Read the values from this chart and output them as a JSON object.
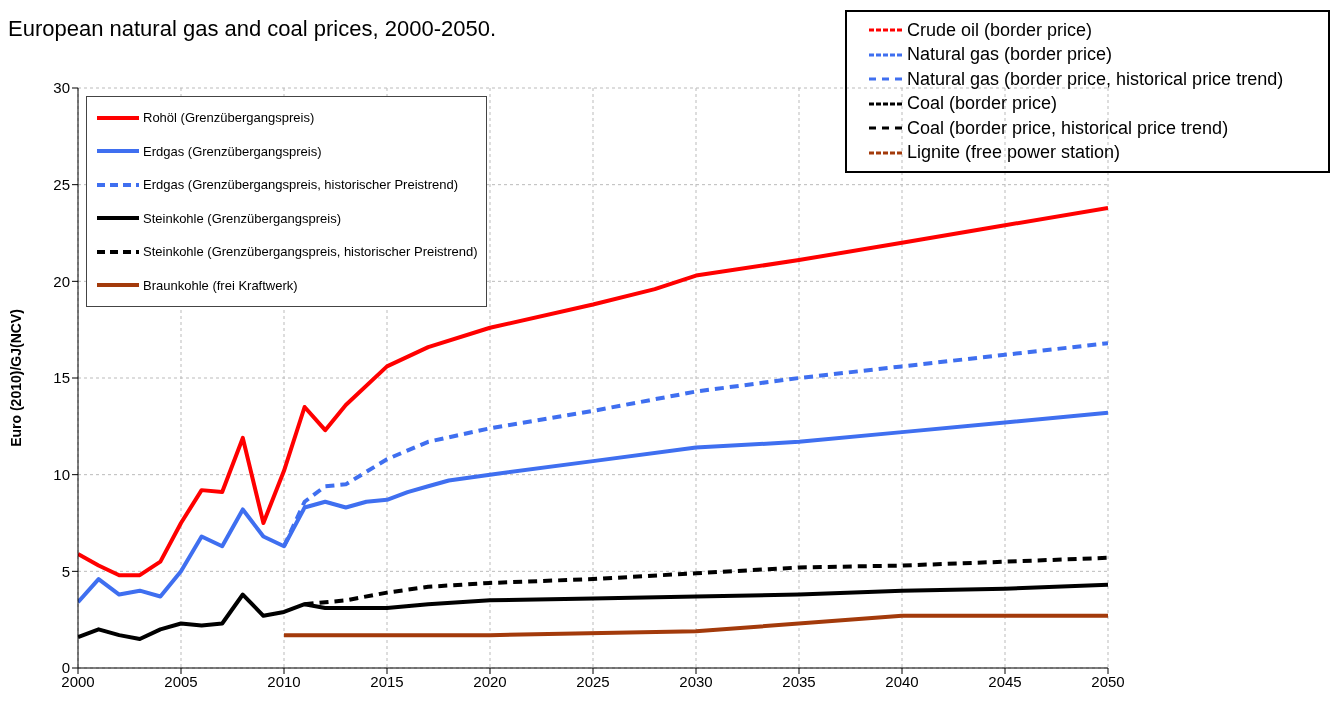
{
  "chart_data": {
    "type": "line",
    "title": "European natural gas and coal prices, 2000-2050.",
    "ylabel": "Euro (2010)/GJ(NCV)",
    "xlim": [
      2000,
      2050
    ],
    "xticks": [
      2000,
      2005,
      2010,
      2015,
      2020,
      2025,
      2030,
      2035,
      2040,
      2045,
      2050
    ],
    "ylim": [
      0,
      30
    ],
    "yticks": [
      0,
      5,
      10,
      15,
      20,
      25,
      30
    ],
    "grid": true,
    "legend": "top left",
    "marker": "none",
    "annotations": [
      "Crude oil (border price)",
      "Natural gas (border price)",
      "Natural gas (border price, historical price trend)",
      "Coal (border price)",
      "Coal (border price, historical price trend)",
      "Lignite (free power station)"
    ],
    "series": [
      {
        "name": "Rohöl (Grenzübergangspreis)",
        "color": "#ff0000",
        "line_style": "solid",
        "x": [
          2000,
          2001,
          2002,
          2003,
          2004,
          2005,
          2006,
          2007,
          2008,
          2009,
          2010,
          2011,
          2012,
          2013,
          2015,
          2017,
          2020,
          2025,
          2028,
          2030,
          2035,
          2040,
          2045,
          2050
        ],
        "values": [
          5.9,
          5.3,
          4.8,
          4.8,
          5.5,
          7.5,
          9.2,
          9.1,
          11.9,
          7.5,
          10.2,
          13.5,
          12.3,
          13.6,
          15.6,
          16.6,
          17.6,
          18.8,
          19.6,
          20.3,
          21.1,
          22.0,
          22.9,
          23.8
        ]
      },
      {
        "name": "Erdgas (Grenzübergangspreis)",
        "color": "#3f6ff0",
        "line_style": "solid",
        "x": [
          2000,
          2001,
          2002,
          2003,
          2004,
          2005,
          2006,
          2007,
          2008,
          2009,
          2010,
          2011,
          2012,
          2013,
          2014,
          2015,
          2016,
          2017,
          2018,
          2020,
          2025,
          2030,
          2035,
          2040,
          2045,
          2050
        ],
        "values": [
          3.4,
          4.6,
          3.8,
          4.0,
          3.7,
          5.0,
          6.8,
          6.3,
          8.2,
          6.8,
          6.3,
          8.3,
          8.6,
          8.3,
          8.6,
          8.7,
          9.1,
          9.4,
          9.7,
          10.0,
          10.7,
          11.4,
          11.7,
          12.2,
          12.7,
          13.2
        ]
      },
      {
        "name": "Erdgas (Grenzübergangspreis, historischer Preistrend)",
        "color": "#3f6ff0",
        "line_style": "dashed",
        "x": [
          2010,
          2011,
          2012,
          2013,
          2015,
          2017,
          2020,
          2025,
          2030,
          2035,
          2040,
          2045,
          2050
        ],
        "values": [
          6.3,
          8.6,
          9.4,
          9.5,
          10.8,
          11.7,
          12.4,
          13.3,
          14.3,
          15.0,
          15.6,
          16.2,
          16.8
        ]
      },
      {
        "name": "Steinkohle (Grenzübergangspreis)",
        "color": "#000000",
        "line_style": "solid",
        "x": [
          2000,
          2001,
          2002,
          2003,
          2004,
          2005,
          2006,
          2007,
          2008,
          2009,
          2010,
          2011,
          2012,
          2015,
          2017,
          2020,
          2025,
          2030,
          2035,
          2040,
          2045,
          2050
        ],
        "values": [
          1.6,
          2.0,
          1.7,
          1.5,
          2.0,
          2.3,
          2.2,
          2.3,
          3.8,
          2.7,
          2.9,
          3.3,
          3.1,
          3.1,
          3.3,
          3.5,
          3.6,
          3.7,
          3.8,
          4.0,
          4.1,
          4.3
        ]
      },
      {
        "name": "Steinkohle (Grenzübergangspreis, historischer Preistrend)",
        "color": "#000000",
        "line_style": "dashed",
        "x": [
          2011,
          2012,
          2013,
          2015,
          2017,
          2020,
          2025,
          2030,
          2035,
          2040,
          2045,
          2050
        ],
        "values": [
          3.3,
          3.4,
          3.5,
          3.9,
          4.2,
          4.4,
          4.6,
          4.9,
          5.2,
          5.3,
          5.5,
          5.7
        ]
      },
      {
        "name": "Braunkohle (frei Kraftwerk)",
        "color": "#a33a0b",
        "line_style": "solid",
        "x": [
          2010,
          2020,
          2030,
          2040,
          2050
        ],
        "values": [
          1.7,
          1.7,
          1.9,
          2.7,
          2.7
        ]
      }
    ]
  }
}
